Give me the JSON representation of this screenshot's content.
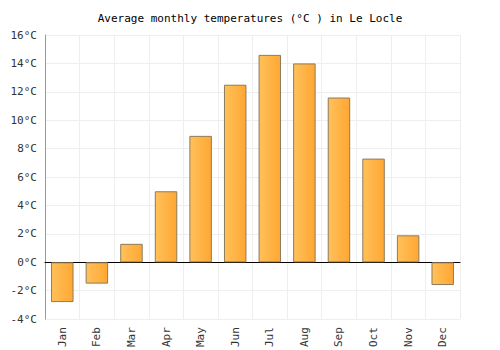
{
  "chart_data": {
    "type": "bar",
    "title": "Average monthly temperatures (°C ) in Le Locle",
    "categories": [
      "Jan",
      "Feb",
      "Mar",
      "Apr",
      "May",
      "Jun",
      "Jul",
      "Aug",
      "Sep",
      "Oct",
      "Nov",
      "Dec"
    ],
    "values": [
      -2.8,
      -1.5,
      1.3,
      5.0,
      8.9,
      12.5,
      14.6,
      14.0,
      11.6,
      7.3,
      1.9,
      -1.6
    ],
    "color": "#ffa733",
    "ylim": [
      -4,
      16
    ],
    "yticks": [
      {
        "value": -4,
        "label": "-4°C"
      },
      {
        "value": -2,
        "label": "-2°C"
      },
      {
        "value": 0,
        "label": "0°C"
      },
      {
        "value": 2,
        "label": "2°C"
      },
      {
        "value": 4,
        "label": "4°C"
      },
      {
        "value": 6,
        "label": "6°C"
      },
      {
        "value": 8,
        "label": "8°C"
      },
      {
        "value": 10,
        "label": "10°C"
      },
      {
        "value": 12,
        "label": "12°C"
      },
      {
        "value": 14,
        "label": "14°C"
      },
      {
        "value": 16,
        "label": "16°C"
      }
    ],
    "grid": true
  }
}
